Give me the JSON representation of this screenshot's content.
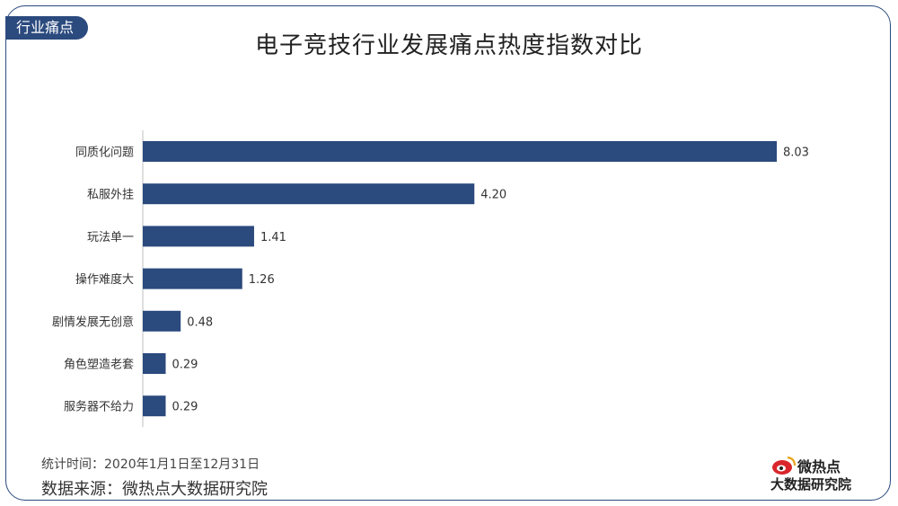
{
  "header": {
    "tag": "行业痛点",
    "title": "电子竞技行业发展痛点热度指数对比"
  },
  "chart_data": {
    "type": "bar",
    "orientation": "horizontal",
    "title": "电子竞技行业发展痛点热度指数对比",
    "categories": [
      "同质化问题",
      "私服外挂",
      "玩法单一",
      "操作难度大",
      "剧情发展无创意",
      "角色塑造老套",
      "服务器不给力"
    ],
    "values": [
      8.03,
      4.2,
      1.41,
      1.26,
      0.48,
      0.29,
      0.29
    ],
    "value_labels": [
      "8.03",
      "4.20",
      "1.41",
      "1.26",
      "0.48",
      "0.29",
      "0.29"
    ],
    "xlim": [
      0,
      8.03
    ],
    "grid": false,
    "bar_color": "#2b4a7e"
  },
  "footer": {
    "period": "统计时间：2020年1月1日至12月31日",
    "source": "数据来源：微热点大数据研究院"
  },
  "logo": {
    "top": "微热点",
    "bottom": "大数据研究院"
  },
  "colors": {
    "accent": "#2b4a7e",
    "logo_red": "#d9262b"
  }
}
